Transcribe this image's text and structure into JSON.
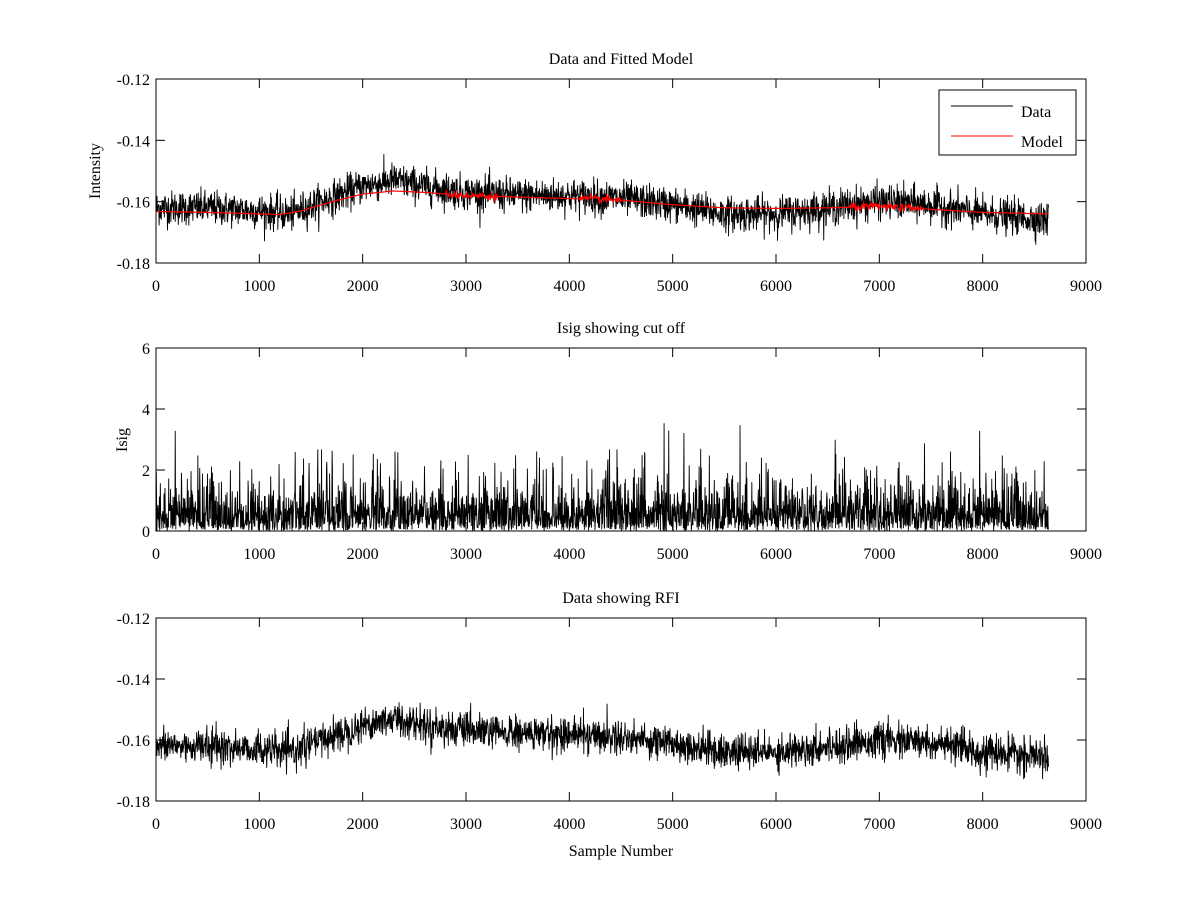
{
  "chart_data": [
    {
      "type": "line",
      "title": "Data and Fitted Model",
      "xlabel": "",
      "ylabel": "Intensity",
      "xlim": [
        0,
        9000
      ],
      "ylim": [
        -0.18,
        -0.12
      ],
      "xticks": [
        0,
        1000,
        2000,
        3000,
        4000,
        5000,
        6000,
        7000,
        8000,
        9000
      ],
      "xtick_labels": [
        "0",
        "1000",
        "2000",
        "3000",
        "4000",
        "5000",
        "6000",
        "7000",
        "8000",
        "9000"
      ],
      "yticks": [
        -0.18,
        -0.16,
        -0.14,
        -0.12
      ],
      "ytick_labels": [
        "-0.18",
        "-0.16",
        "-0.14",
        "-0.12"
      ],
      "grid": false,
      "legend": {
        "position": "top-right",
        "entries": [
          "Data",
          "Model"
        ]
      },
      "series": [
        {
          "name": "Data",
          "color": "#000000",
          "n_samples": 8640,
          "trend_x": [
            0,
            500,
            1000,
            1300,
            1600,
            2000,
            2300,
            2600,
            3000,
            3500,
            4000,
            4500,
            5000,
            5500,
            6000,
            6500,
            7000,
            7500,
            8000,
            8640
          ],
          "trend_y": [
            -0.162,
            -0.162,
            -0.163,
            -0.164,
            -0.16,
            -0.155,
            -0.153,
            -0.155,
            -0.157,
            -0.158,
            -0.158,
            -0.159,
            -0.161,
            -0.164,
            -0.164,
            -0.162,
            -0.16,
            -0.161,
            -0.164,
            -0.166
          ],
          "noise_spread": 0.004
        },
        {
          "name": "Model",
          "color": "#ff0000",
          "x": [
            0,
            500,
            1000,
            1200,
            1400,
            1700,
            2000,
            2300,
            2600,
            3000,
            3500,
            4000,
            4500,
            5000,
            5500,
            6000,
            6500,
            7000,
            7500,
            8000,
            8640
          ],
          "y": [
            -0.1632,
            -0.1635,
            -0.164,
            -0.1642,
            -0.163,
            -0.16,
            -0.1575,
            -0.1565,
            -0.157,
            -0.158,
            -0.1585,
            -0.159,
            -0.1595,
            -0.161,
            -0.162,
            -0.1622,
            -0.162,
            -0.1615,
            -0.1625,
            -0.1635,
            -0.164
          ]
        }
      ]
    },
    {
      "type": "line",
      "title": "Isig showing cut off",
      "xlabel": "",
      "ylabel": "Isig",
      "xlim": [
        0,
        9000
      ],
      "ylim": [
        0,
        6
      ],
      "xticks": [
        0,
        1000,
        2000,
        3000,
        4000,
        5000,
        6000,
        7000,
        8000,
        9000
      ],
      "xtick_labels": [
        "0",
        "1000",
        "2000",
        "3000",
        "4000",
        "5000",
        "6000",
        "7000",
        "8000",
        "9000"
      ],
      "yticks": [
        0,
        2,
        4,
        6
      ],
      "ytick_labels": [
        "0",
        "2",
        "4",
        "6"
      ],
      "grid": false,
      "series": [
        {
          "name": "Isig",
          "color": "#000000",
          "n_samples": 8640,
          "typical_max": 2.5,
          "peak_max": 3.8
        }
      ]
    },
    {
      "type": "line",
      "title": "Data showing RFI",
      "xlabel": "Sample Number",
      "ylabel": "",
      "xlim": [
        0,
        9000
      ],
      "ylim": [
        -0.18,
        -0.12
      ],
      "xticks": [
        0,
        1000,
        2000,
        3000,
        4000,
        5000,
        6000,
        7000,
        8000,
        9000
      ],
      "xtick_labels": [
        "0",
        "1000",
        "2000",
        "3000",
        "4000",
        "5000",
        "6000",
        "7000",
        "8000",
        "9000"
      ],
      "yticks": [
        -0.18,
        -0.16,
        -0.14,
        -0.12
      ],
      "ytick_labels": [
        "-0.18",
        "-0.16",
        "-0.14",
        "-0.12"
      ],
      "grid": false,
      "series": [
        {
          "name": "Data",
          "color": "#000000",
          "n_samples": 8640,
          "trend_x": [
            0,
            500,
            1000,
            1300,
            1600,
            2000,
            2300,
            2600,
            3000,
            3500,
            4000,
            4500,
            5000,
            5500,
            6000,
            6500,
            7000,
            7500,
            8000,
            8640
          ],
          "trend_y": [
            -0.162,
            -0.162,
            -0.163,
            -0.164,
            -0.16,
            -0.155,
            -0.153,
            -0.155,
            -0.157,
            -0.158,
            -0.158,
            -0.159,
            -0.161,
            -0.164,
            -0.164,
            -0.162,
            -0.16,
            -0.161,
            -0.164,
            -0.166
          ],
          "noise_spread": 0.004
        }
      ]
    }
  ]
}
